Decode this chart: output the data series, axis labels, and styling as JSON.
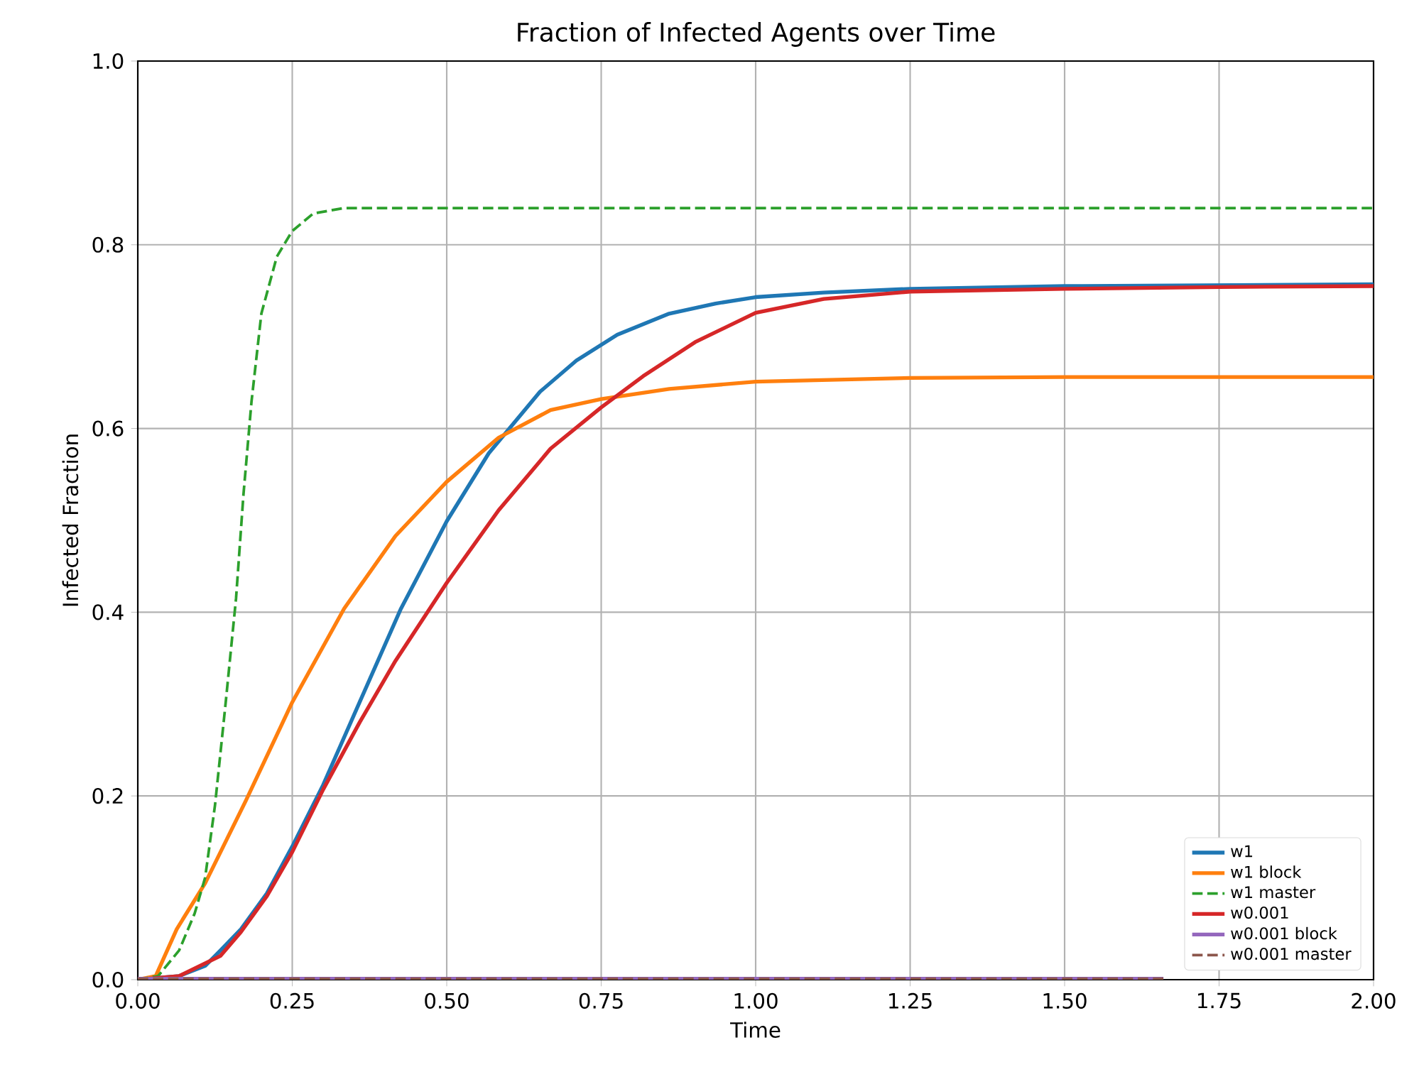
{
  "chart_data": {
    "type": "line",
    "title": "Fraction of Infected Agents over Time",
    "xlabel": "Time",
    "ylabel": "Infected Fraction",
    "xlim": [
      0,
      2
    ],
    "ylim": [
      0,
      1
    ],
    "xticks": [
      {
        "value": 0,
        "label": "0.00"
      },
      {
        "value": 0.25,
        "label": "0.25"
      },
      {
        "value": 0.5,
        "label": "0.50"
      },
      {
        "value": 0.75,
        "label": "0.75"
      },
      {
        "value": 1,
        "label": "1.00"
      },
      {
        "value": 1.25,
        "label": "1.25"
      },
      {
        "value": 1.5,
        "label": "1.50"
      },
      {
        "value": 1.75,
        "label": "1.75"
      },
      {
        "value": 2,
        "label": "2.00"
      }
    ],
    "yticks": [
      {
        "value": 0,
        "label": "0.0"
      },
      {
        "value": 0.2,
        "label": "0.2"
      },
      {
        "value": 0.4,
        "label": "0.4"
      },
      {
        "value": 0.6,
        "label": "0.6"
      },
      {
        "value": 0.8,
        "label": "0.8"
      },
      {
        "value": 1,
        "label": "1.0"
      }
    ],
    "grid": true,
    "legend": "bottom right",
    "series": [
      {
        "name": "w1",
        "color": "#1f77b4",
        "line_style": "solid",
        "x": [
          0,
          0.067,
          0.109,
          0.134,
          0.167,
          0.209,
          0.25,
          0.3,
          0.359,
          0.426,
          0.5,
          0.568,
          0.651,
          0.71,
          0.776,
          0.86,
          0.935,
          1.0,
          1.11,
          1.25,
          1.5,
          1.75,
          2.0
        ],
        "values": [
          0,
          0.004,
          0.015,
          0.032,
          0.055,
          0.094,
          0.145,
          0.212,
          0.302,
          0.404,
          0.499,
          0.573,
          0.64,
          0.674,
          0.702,
          0.725,
          0.736,
          0.743,
          0.748,
          0.752,
          0.755,
          0.756,
          0.757
        ]
      },
      {
        "name": "w1 block",
        "color": "#ff7f0e",
        "line_style": "solid",
        "x": [
          0,
          0.029,
          0.063,
          0.109,
          0.175,
          0.25,
          0.334,
          0.417,
          0.5,
          0.584,
          0.668,
          0.75,
          0.86,
          1.0,
          1.25,
          1.5,
          2.0
        ],
        "values": [
          0,
          0.004,
          0.055,
          0.105,
          0.195,
          0.302,
          0.404,
          0.483,
          0.542,
          0.59,
          0.62,
          0.632,
          0.643,
          0.651,
          0.655,
          0.656,
          0.656
        ]
      },
      {
        "name": "w1 master",
        "color": "#2ca02c",
        "line_style": "dashed",
        "x": [
          0,
          0.033,
          0.067,
          0.092,
          0.109,
          0.125,
          0.142,
          0.159,
          0.171,
          0.184,
          0.2,
          0.225,
          0.25,
          0.284,
          0.334,
          0.5,
          1.0,
          1.5,
          2.0
        ],
        "values": [
          0,
          0.004,
          0.032,
          0.072,
          0.111,
          0.19,
          0.3,
          0.415,
          0.528,
          0.629,
          0.725,
          0.787,
          0.815,
          0.834,
          0.84,
          0.84,
          0.84,
          0.84,
          0.84
        ]
      },
      {
        "name": "w0.001",
        "color": "#d62728",
        "line_style": "solid",
        "x": [
          0,
          0.067,
          0.134,
          0.167,
          0.209,
          0.25,
          0.3,
          0.359,
          0.417,
          0.5,
          0.584,
          0.668,
          0.75,
          0.818,
          0.902,
          1.0,
          1.11,
          1.25,
          1.5,
          1.75,
          2.0
        ],
        "values": [
          0,
          0.004,
          0.026,
          0.052,
          0.091,
          0.139,
          0.207,
          0.28,
          0.347,
          0.432,
          0.511,
          0.578,
          0.623,
          0.657,
          0.694,
          0.726,
          0.741,
          0.749,
          0.752,
          0.754,
          0.755
        ]
      },
      {
        "name": "w0.001 block",
        "color": "#9467bd",
        "line_style": "solid",
        "x": [
          0,
          0.5,
          1.0,
          1.66
        ],
        "values": [
          0.001,
          0.001,
          0.001,
          0.001
        ]
      },
      {
        "name": "w0.001 master",
        "color": "#8c564b",
        "line_style": "dashed",
        "x": [
          0,
          0.5,
          1.0,
          1.66
        ],
        "values": [
          0.001,
          0.001,
          0.001,
          0.001
        ]
      }
    ]
  }
}
